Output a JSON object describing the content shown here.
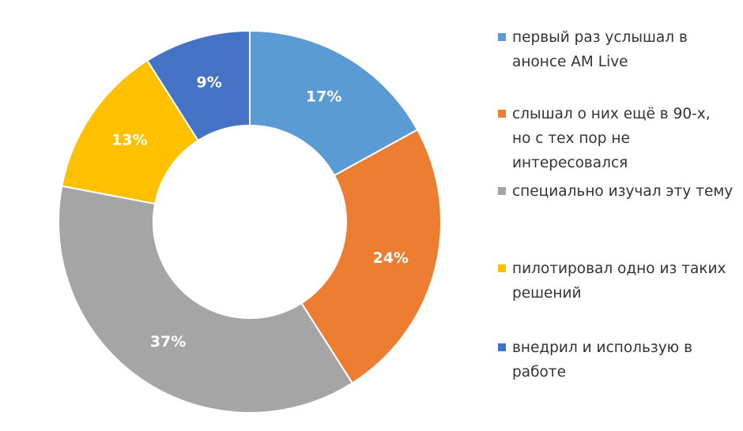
{
  "chart_data": {
    "type": "donut",
    "values": [
      17,
      24,
      37,
      13,
      9
    ],
    "data_labels": [
      "17%",
      "24%",
      "37%",
      "13%",
      "9%"
    ],
    "categories": [
      "первый раз услышал в анонсе AM Live",
      "слышал о них ещё в 90-х, но с тех пор не интересовался",
      "специально изучал эту тему",
      "пилотировал одно из таких решений",
      "внедрил и использую в работе"
    ],
    "legend_lines": [
      "первый раз услышал в\nанонсе AM Live",
      "слышал о них ещё в 90-х,\nно с тех пор не\nинтересовался",
      "специально изучал эту тему",
      "пилотировал одно из таких\nрешений",
      "внедрил и использую в\nработе"
    ],
    "colors": [
      "#5B9BD5",
      "#ED7D31",
      "#A5A5A5",
      "#FFC000",
      "#4472C4"
    ],
    "legend_position": "right",
    "start_angle": "top, clockwise"
  }
}
